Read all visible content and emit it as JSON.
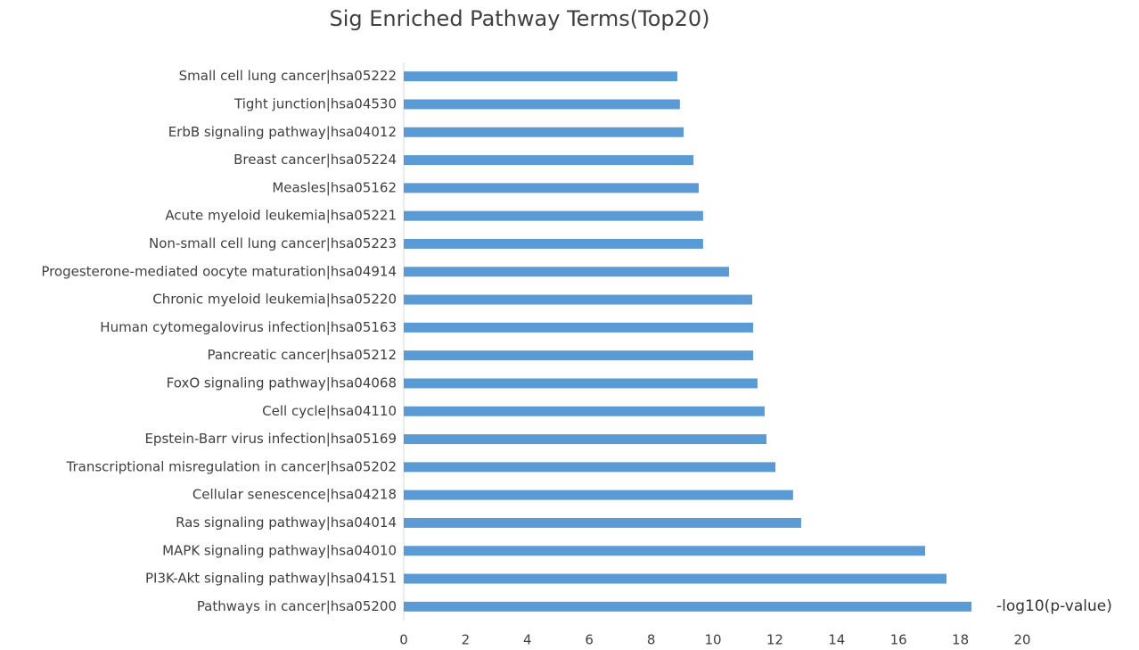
{
  "chart_data": {
    "type": "bar",
    "orientation": "horizontal",
    "title": "Sig Enriched Pathway Terms(Top20)",
    "x_label": "-log10(p-value)",
    "categories": [
      "Small cell lung cancer|hsa05222",
      "Tight junction|hsa04530",
      "ErbB signaling pathway|hsa04012",
      "Breast cancer|hsa05224",
      "Measles|hsa05162",
      "Acute myeloid leukemia|hsa05221",
      "Non-small cell lung cancer|hsa05223",
      "Progesterone-mediated oocyte maturation|hsa04914",
      "Chronic myeloid leukemia|hsa05220",
      "Human cytomegalovirus infection|hsa05163",
      "Pancreatic cancer|hsa05212",
      "FoxO signaling pathway|hsa04068",
      "Cell cycle|hsa04110",
      "Epstein-Barr virus infection|hsa05169",
      "Transcriptional misregulation in cancer|hsa05202",
      "Cellular senescence|hsa04218",
      "Ras signaling pathway|hsa04014",
      "MAPK signaling pathway|hsa04010",
      "PI3K-Akt signaling pathway|hsa04151",
      "Pathways in cancer|hsa05200"
    ],
    "values": [
      8.85,
      8.93,
      9.05,
      9.37,
      9.54,
      9.68,
      9.68,
      10.52,
      11.27,
      11.3,
      11.3,
      11.44,
      11.67,
      11.73,
      12.02,
      12.59,
      12.85,
      16.86,
      17.55,
      18.36
    ],
    "color": "#5b9bd5",
    "xlim": [
      0,
      20
    ],
    "xticks": [
      0,
      2,
      4,
      6,
      8,
      10,
      12,
      14,
      16,
      18,
      20
    ],
    "grid": false
  }
}
